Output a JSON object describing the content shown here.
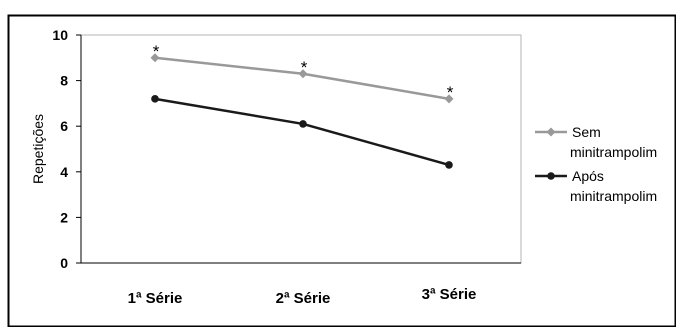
{
  "chart_data": {
    "type": "line",
    "categories": [
      "1ª Série",
      "2ª Série",
      "3ª Série"
    ],
    "series": [
      {
        "name": "Sem minitrampolim",
        "legend_lines": [
          "Sem",
          "minitrampolim"
        ],
        "values": [
          9.0,
          8.3,
          7.2
        ],
        "color": "#999999",
        "marker": "diamond"
      },
      {
        "name": "Após minitrampolim",
        "legend_lines": [
          "Após",
          "minitrampolim"
        ],
        "values": [
          7.2,
          6.1,
          4.3
        ],
        "color": "#1a1a1a",
        "marker": "circle"
      }
    ],
    "annotations": [
      {
        "text": "*",
        "category_index": 0,
        "series_index": 0
      },
      {
        "text": "*",
        "category_index": 1,
        "series_index": 0
      },
      {
        "text": "*",
        "category_index": 2,
        "series_index": 0
      }
    ],
    "ylabel": "Repetições",
    "xlabel": "",
    "ylim": [
      0,
      10
    ],
    "yticks": [
      "0",
      "2",
      "4",
      "6",
      "8",
      "10"
    ],
    "grid": false,
    "legend_position": "right"
  }
}
